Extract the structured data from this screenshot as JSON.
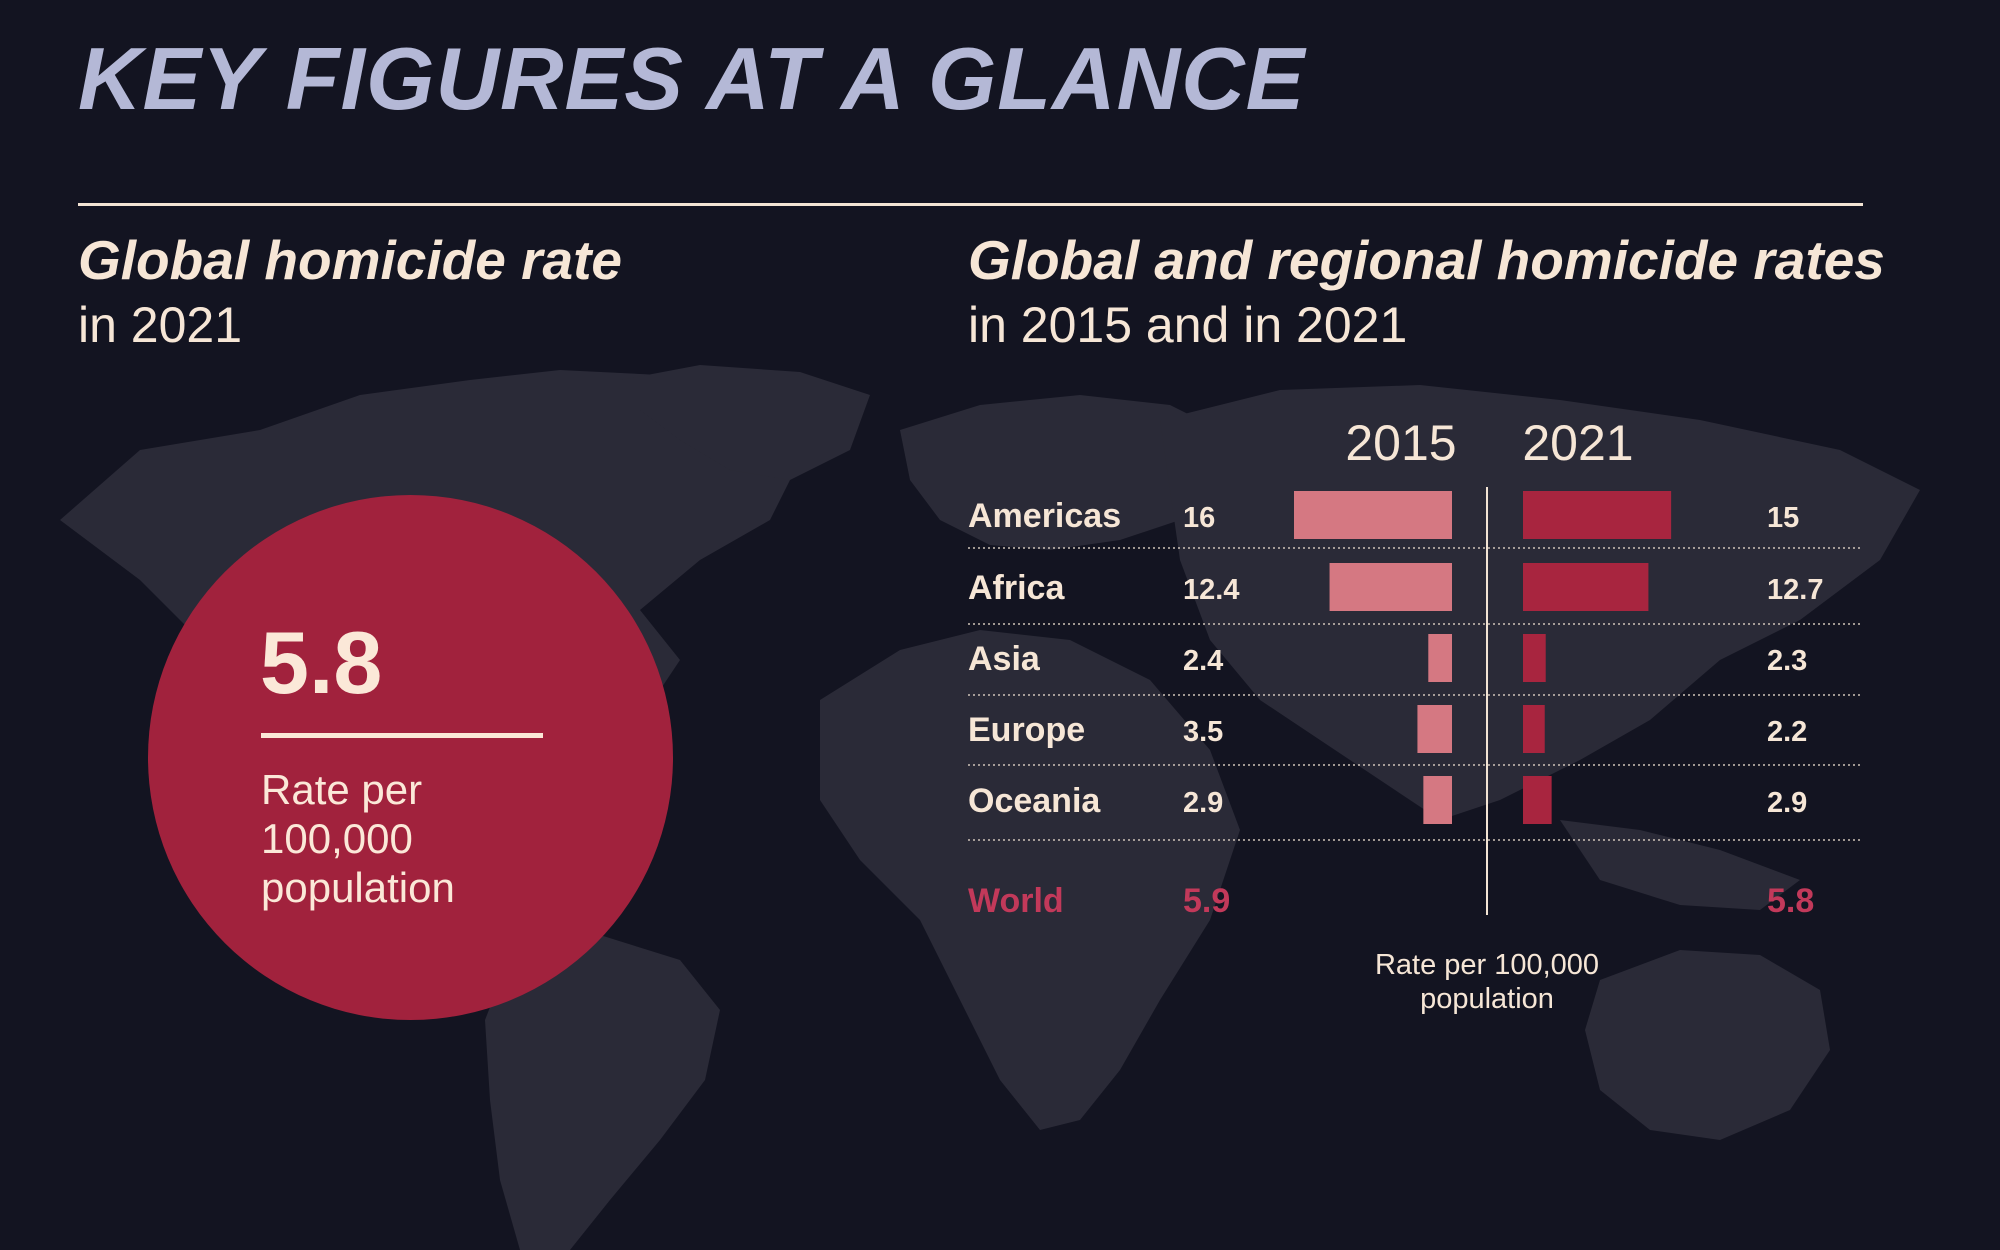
{
  "header": {
    "title": "KEY FIGURES AT A GLANCE"
  },
  "left_panel": {
    "title": "Global homicide rate",
    "subtitle": "in 2021",
    "value": "5.8",
    "unit_lines": [
      "Rate per",
      "100,000",
      "population"
    ],
    "circle_color": "#a1223d"
  },
  "right_panel": {
    "title": "Global and regional homicide rates",
    "subtitle": "in 2015 and in 2021"
  },
  "chart_data": {
    "type": "bar",
    "orientation": "horizontal-diverging",
    "series": [
      {
        "name": "2015",
        "values": [
          16,
          12.4,
          2.4,
          3.5,
          2.9
        ],
        "labels": [
          "16",
          "12.4",
          "2.4",
          "3.5",
          "2.9"
        ],
        "color": "#d57882",
        "direction": "left"
      },
      {
        "name": "2021",
        "values": [
          15,
          12.7,
          2.3,
          2.2,
          2.9
        ],
        "labels": [
          "15",
          "12.7",
          "2.3",
          "2.2",
          "2.9"
        ],
        "color": "#a8253f",
        "direction": "right"
      }
    ],
    "categories": [
      "Americas",
      "Africa",
      "Asia",
      "Europe",
      "Oceania"
    ],
    "total": {
      "label": "World",
      "values": [
        "5.9",
        "5.8"
      ],
      "color": "#c2395a"
    },
    "axis_note": [
      "Rate per 100,000",
      "population"
    ],
    "xlim": [
      0,
      16
    ],
    "grid": false,
    "legend": "column headers"
  }
}
